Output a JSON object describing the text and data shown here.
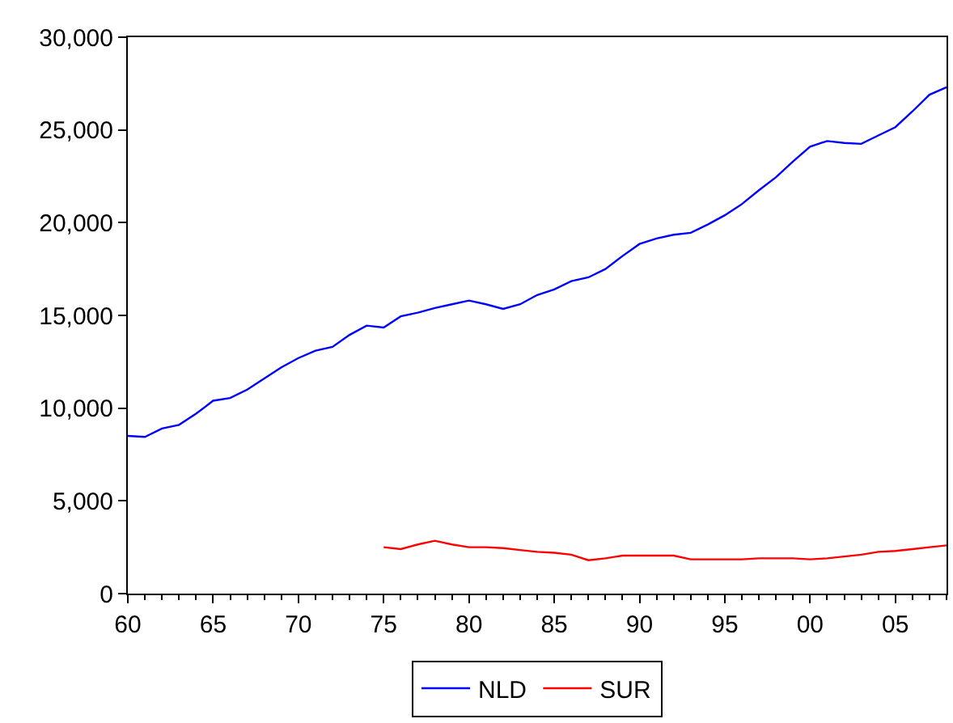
{
  "chart_data": {
    "type": "line",
    "x": [
      1960,
      1961,
      1962,
      1963,
      1964,
      1965,
      1966,
      1967,
      1968,
      1969,
      1970,
      1971,
      1972,
      1973,
      1974,
      1975,
      1976,
      1977,
      1978,
      1979,
      1980,
      1981,
      1982,
      1983,
      1984,
      1985,
      1986,
      1987,
      1988,
      1989,
      1990,
      1991,
      1992,
      1993,
      1994,
      1995,
      1996,
      1997,
      1998,
      1999,
      2000,
      2001,
      2002,
      2003,
      2004,
      2005,
      2006,
      2007,
      2008
    ],
    "series": [
      {
        "name": "NLD",
        "color": "#0000ff",
        "values": [
          8500,
          8450,
          8900,
          9100,
          9700,
          10400,
          10550,
          11000,
          11600,
          12200,
          12700,
          13100,
          13300,
          13950,
          14450,
          14350,
          14950,
          15150,
          15400,
          15600,
          15800,
          15600,
          15350,
          15600,
          16100,
          16400,
          16850,
          17050,
          17500,
          18200,
          18850,
          19150,
          19350,
          19450,
          19900,
          20400,
          21000,
          21750,
          22450,
          23300,
          24100,
          24400,
          24300,
          24250,
          24700,
          25150,
          26000,
          26900,
          27300
        ]
      },
      {
        "name": "SUR",
        "color": "#ff0000",
        "values": [
          null,
          null,
          null,
          null,
          null,
          null,
          null,
          null,
          null,
          null,
          null,
          null,
          null,
          null,
          null,
          2500,
          2400,
          2650,
          2850,
          2650,
          2500,
          2500,
          2450,
          2350,
          2250,
          2200,
          2100,
          1800,
          1900,
          2050,
          2050,
          2050,
          2050,
          1850,
          1850,
          1850,
          1850,
          1900,
          1900,
          1900,
          1850,
          1900,
          2000,
          2100,
          2250,
          2300,
          2400,
          2500,
          2600
        ]
      }
    ],
    "xlim": [
      1960,
      2008
    ],
    "xticks": [
      {
        "value": 1960,
        "label": "60"
      },
      {
        "value": 1965,
        "label": "65"
      },
      {
        "value": 1970,
        "label": "70"
      },
      {
        "value": 1975,
        "label": "75"
      },
      {
        "value": 1980,
        "label": "80"
      },
      {
        "value": 1985,
        "label": "85"
      },
      {
        "value": 1990,
        "label": "90"
      },
      {
        "value": 1995,
        "label": "95"
      },
      {
        "value": 2000,
        "label": "00"
      },
      {
        "value": 2005,
        "label": "05"
      }
    ],
    "ylim": [
      0,
      30000
    ],
    "yticks": [
      {
        "value": 0,
        "label": "0"
      },
      {
        "value": 5000,
        "label": "5,000"
      },
      {
        "value": 10000,
        "label": "10,000"
      },
      {
        "value": 15000,
        "label": "15,000"
      },
      {
        "value": 20000,
        "label": "20,000"
      },
      {
        "value": 25000,
        "label": "25,000"
      },
      {
        "value": 30000,
        "label": "30,000"
      }
    ],
    "legend": "bottom",
    "marker": "none",
    "line_style": "solid"
  }
}
